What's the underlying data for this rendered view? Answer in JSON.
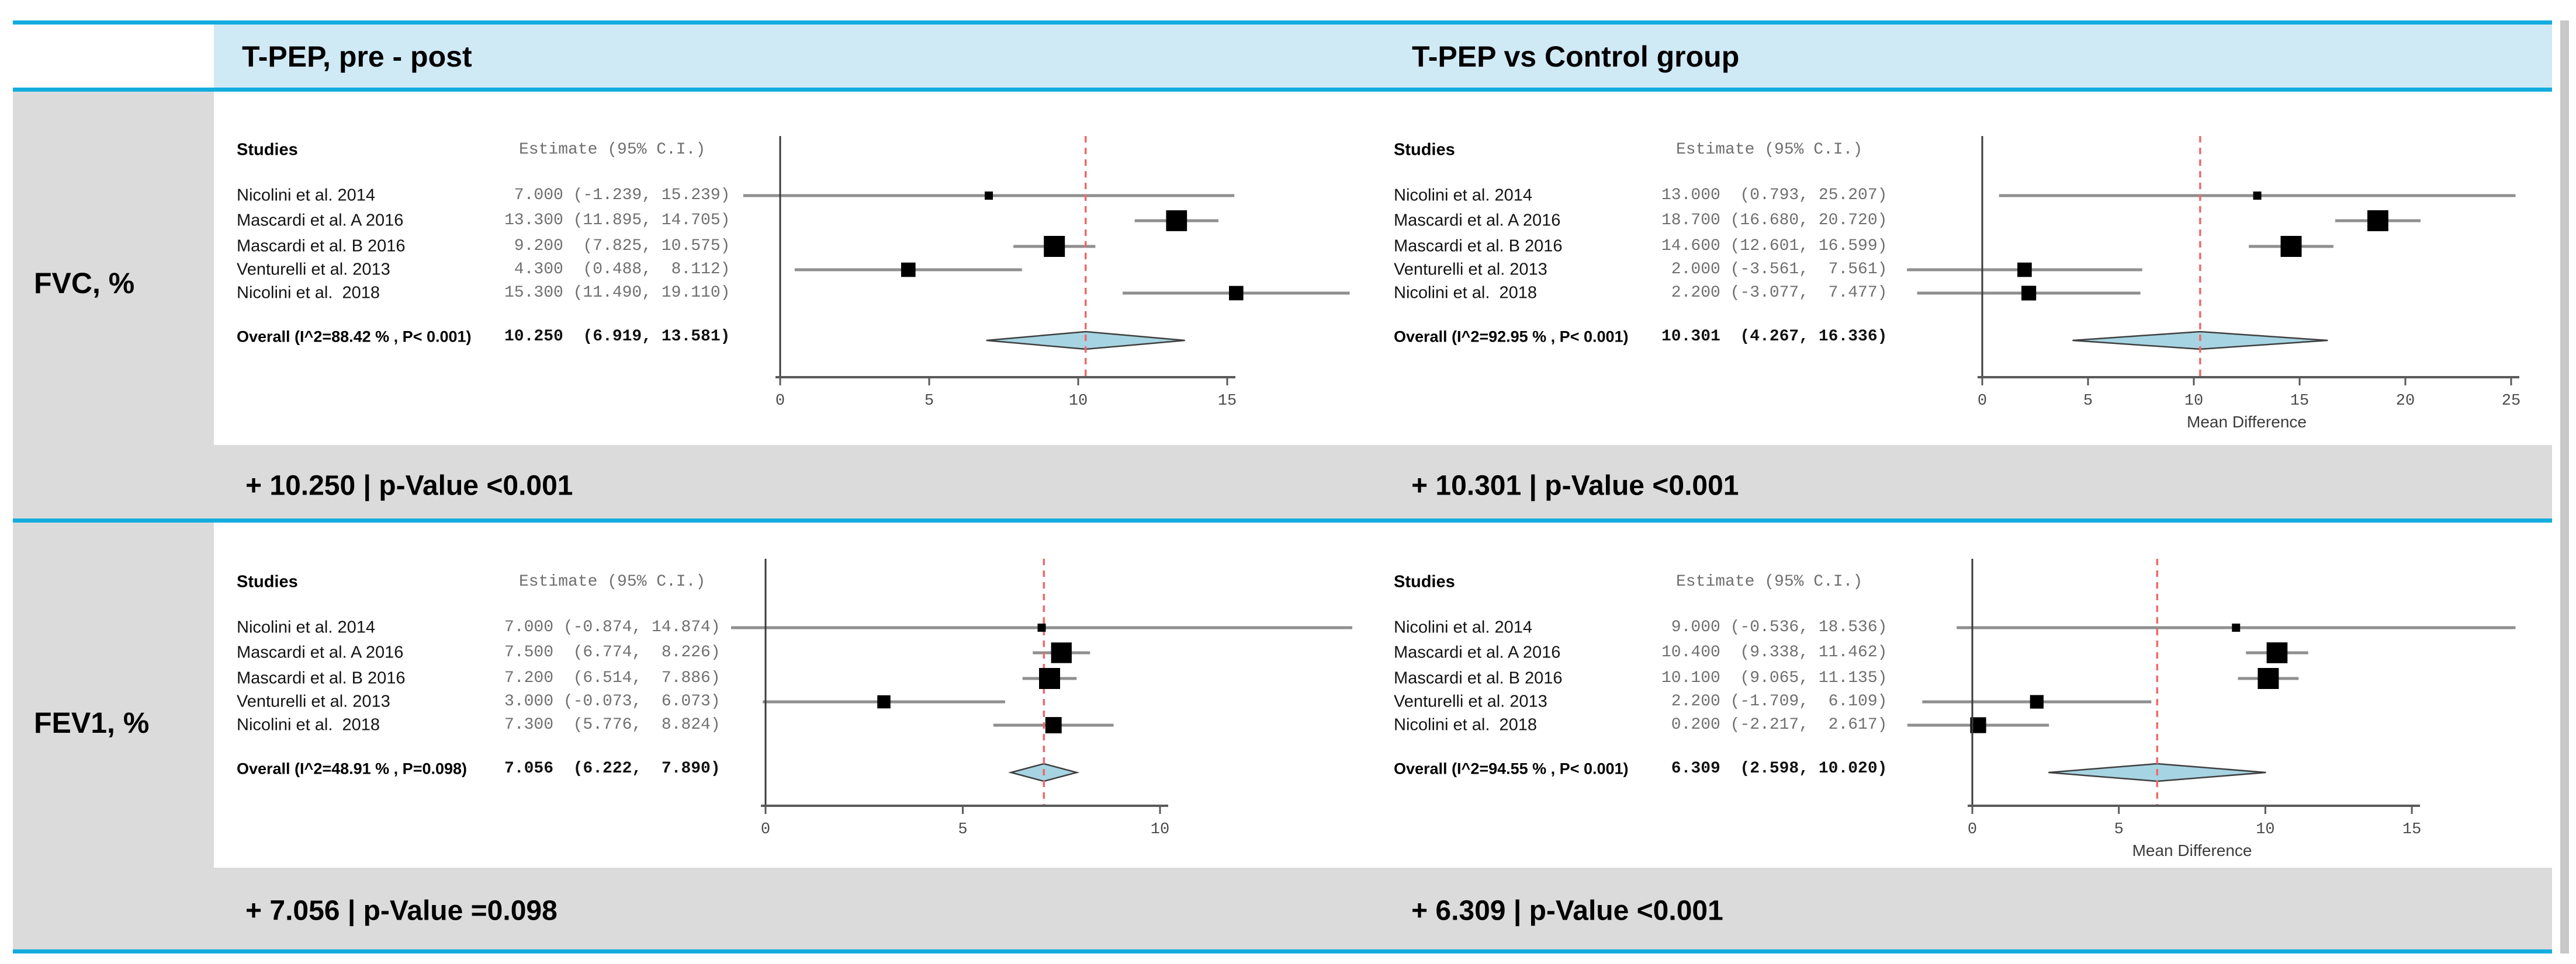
{
  "header": {
    "left_title": "T-PEP, pre - post",
    "right_title": "T-PEP vs Control group"
  },
  "sections": [
    {
      "row_label": "FVC, %",
      "summaries": [
        "+ 10.250 | p-Value <0.001",
        "+ 10.301 | p-Value <0.001"
      ]
    },
    {
      "row_label": "FEV1, %",
      "summaries": [
        "+ 7.056 | p-Value =0.098",
        "+ 6.309 | p-Value <0.001"
      ]
    }
  ],
  "colors": {
    "border_cyan": "#13acdf",
    "header_blue": "#cfe9f5",
    "section_gray": "#dbdbdb",
    "edge_gray": "#c8c8c8",
    "ci_line": "#8f8f8f",
    "marker": "#000000",
    "diamond_fill": "#a6d4e2",
    "diamond_stroke": "#3f3f3f",
    "ref_line_red": "#ee6a6a",
    "axis": "#5a5a5a",
    "estimate_text": "#6f6f6f"
  },
  "chart_data": [
    {
      "type": "forest",
      "section": "FVC, %",
      "comparison": "T-PEP, pre - post",
      "col_studies": "Studies",
      "col_estimate": "Estimate (95% C.I.)",
      "studies": [
        {
          "name": "Nicolini et al. 2014",
          "estimate_label": " 7.000 (-1.239, 15.239)",
          "est": 7.0,
          "lo": -1.239,
          "hi": 15.239
        },
        {
          "name": "Mascardi et al. A 2016",
          "estimate_label": "13.300 (11.895, 14.705)",
          "est": 13.3,
          "lo": 11.895,
          "hi": 14.705
        },
        {
          "name": "Mascardi et al. B 2016",
          "estimate_label": " 9.200  (7.825, 10.575)",
          "est": 9.2,
          "lo": 7.825,
          "hi": 10.575
        },
        {
          "name": "Venturelli et al. 2013",
          "estimate_label": " 4.300  (0.488,  8.112)",
          "est": 4.3,
          "lo": 0.488,
          "hi": 8.112
        },
        {
          "name": "Nicolini et al.  2018",
          "estimate_label": "15.300 (11.490, 19.110)",
          "est": 15.3,
          "lo": 11.49,
          "hi": 19.11
        }
      ],
      "overall": {
        "name": "Overall (I^2=88.42 % , P< 0.001)",
        "estimate_label": "10.250  (6.919, 13.581)",
        "est": 10.25,
        "lo": 6.919,
        "hi": 13.581
      },
      "x_ticks": [
        0,
        5,
        10,
        15
      ],
      "x_axis_label": "",
      "ref_line": 10.25
    },
    {
      "type": "forest",
      "section": "FVC, %",
      "comparison": "T-PEP vs Control group",
      "col_studies": "Studies",
      "col_estimate": "Estimate (95% C.I.)",
      "studies": [
        {
          "name": "Nicolini et al. 2014",
          "estimate_label": "13.000  (0.793, 25.207)",
          "est": 13.0,
          "lo": 0.793,
          "hi": 25.207
        },
        {
          "name": "Mascardi et al. A 2016",
          "estimate_label": "18.700 (16.680, 20.720)",
          "est": 18.7,
          "lo": 16.68,
          "hi": 20.72
        },
        {
          "name": "Mascardi et al. B 2016",
          "estimate_label": "14.600 (12.601, 16.599)",
          "est": 14.6,
          "lo": 12.601,
          "hi": 16.599
        },
        {
          "name": "Venturelli et al. 2013",
          "estimate_label": " 2.000 (-3.561,  7.561)",
          "est": 2.0,
          "lo": -3.561,
          "hi": 7.561
        },
        {
          "name": "Nicolini et al.  2018",
          "estimate_label": " 2.200 (-3.077,  7.477)",
          "est": 2.2,
          "lo": -3.077,
          "hi": 7.477
        }
      ],
      "overall": {
        "name": "Overall (I^2=92.95 % , P< 0.001)",
        "estimate_label": "10.301  (4.267, 16.336)",
        "est": 10.301,
        "lo": 4.267,
        "hi": 16.336
      },
      "x_ticks": [
        0,
        5,
        10,
        15,
        20,
        25
      ],
      "x_axis_label": "Mean Difference",
      "ref_line": 10.301
    },
    {
      "type": "forest",
      "section": "FEV1, %",
      "comparison": "T-PEP, pre - post",
      "col_studies": "Studies",
      "col_estimate": "Estimate (95% C.I.)",
      "studies": [
        {
          "name": "Nicolini et al. 2014",
          "estimate_label": "7.000 (-0.874, 14.874)",
          "est": 7.0,
          "lo": -0.874,
          "hi": 14.874
        },
        {
          "name": "Mascardi et al. A 2016",
          "estimate_label": "7.500  (6.774,  8.226)",
          "est": 7.5,
          "lo": 6.774,
          "hi": 8.226
        },
        {
          "name": "Mascardi et al. B 2016",
          "estimate_label": "7.200  (6.514,  7.886)",
          "est": 7.2,
          "lo": 6.514,
          "hi": 7.886
        },
        {
          "name": "Venturelli et al. 2013",
          "estimate_label": "3.000 (-0.073,  6.073)",
          "est": 3.0,
          "lo": -0.073,
          "hi": 6.073
        },
        {
          "name": "Nicolini et al.  2018",
          "estimate_label": "7.300  (5.776,  8.824)",
          "est": 7.3,
          "lo": 5.776,
          "hi": 8.824
        }
      ],
      "overall": {
        "name": "Overall (I^2=48.91 % , P=0.098)",
        "estimate_label": "7.056  (6.222,  7.890)",
        "est": 7.056,
        "lo": 6.222,
        "hi": 7.89
      },
      "x_ticks": [
        0,
        5,
        10
      ],
      "x_axis_label": "",
      "ref_line": 7.056
    },
    {
      "type": "forest",
      "section": "FEV1, %",
      "comparison": "T-PEP vs Control group",
      "col_studies": "Studies",
      "col_estimate": "Estimate (95% C.I.)",
      "studies": [
        {
          "name": "Nicolini et al. 2014",
          "estimate_label": " 9.000 (-0.536, 18.536)",
          "est": 9.0,
          "lo": -0.536,
          "hi": 18.536
        },
        {
          "name": "Mascardi et al. A 2016",
          "estimate_label": "10.400  (9.338, 11.462)",
          "est": 10.4,
          "lo": 9.338,
          "hi": 11.462
        },
        {
          "name": "Mascardi et al. B 2016",
          "estimate_label": "10.100  (9.065, 11.135)",
          "est": 10.1,
          "lo": 9.065,
          "hi": 11.135
        },
        {
          "name": "Venturelli et al. 2013",
          "estimate_label": " 2.200 (-1.709,  6.109)",
          "est": 2.2,
          "lo": -1.709,
          "hi": 6.109
        },
        {
          "name": "Nicolini et al.  2018",
          "estimate_label": " 0.200 (-2.217,  2.617)",
          "est": 0.2,
          "lo": -2.217,
          "hi": 2.617
        }
      ],
      "overall": {
        "name": "Overall (I^2=94.55 % , P< 0.001)",
        "estimate_label": " 6.309  (2.598, 10.020)",
        "est": 6.309,
        "lo": 2.598,
        "hi": 10.02
      },
      "x_ticks": [
        0,
        5,
        10,
        15
      ],
      "x_axis_label": "Mean Difference",
      "ref_line": 6.309
    }
  ]
}
